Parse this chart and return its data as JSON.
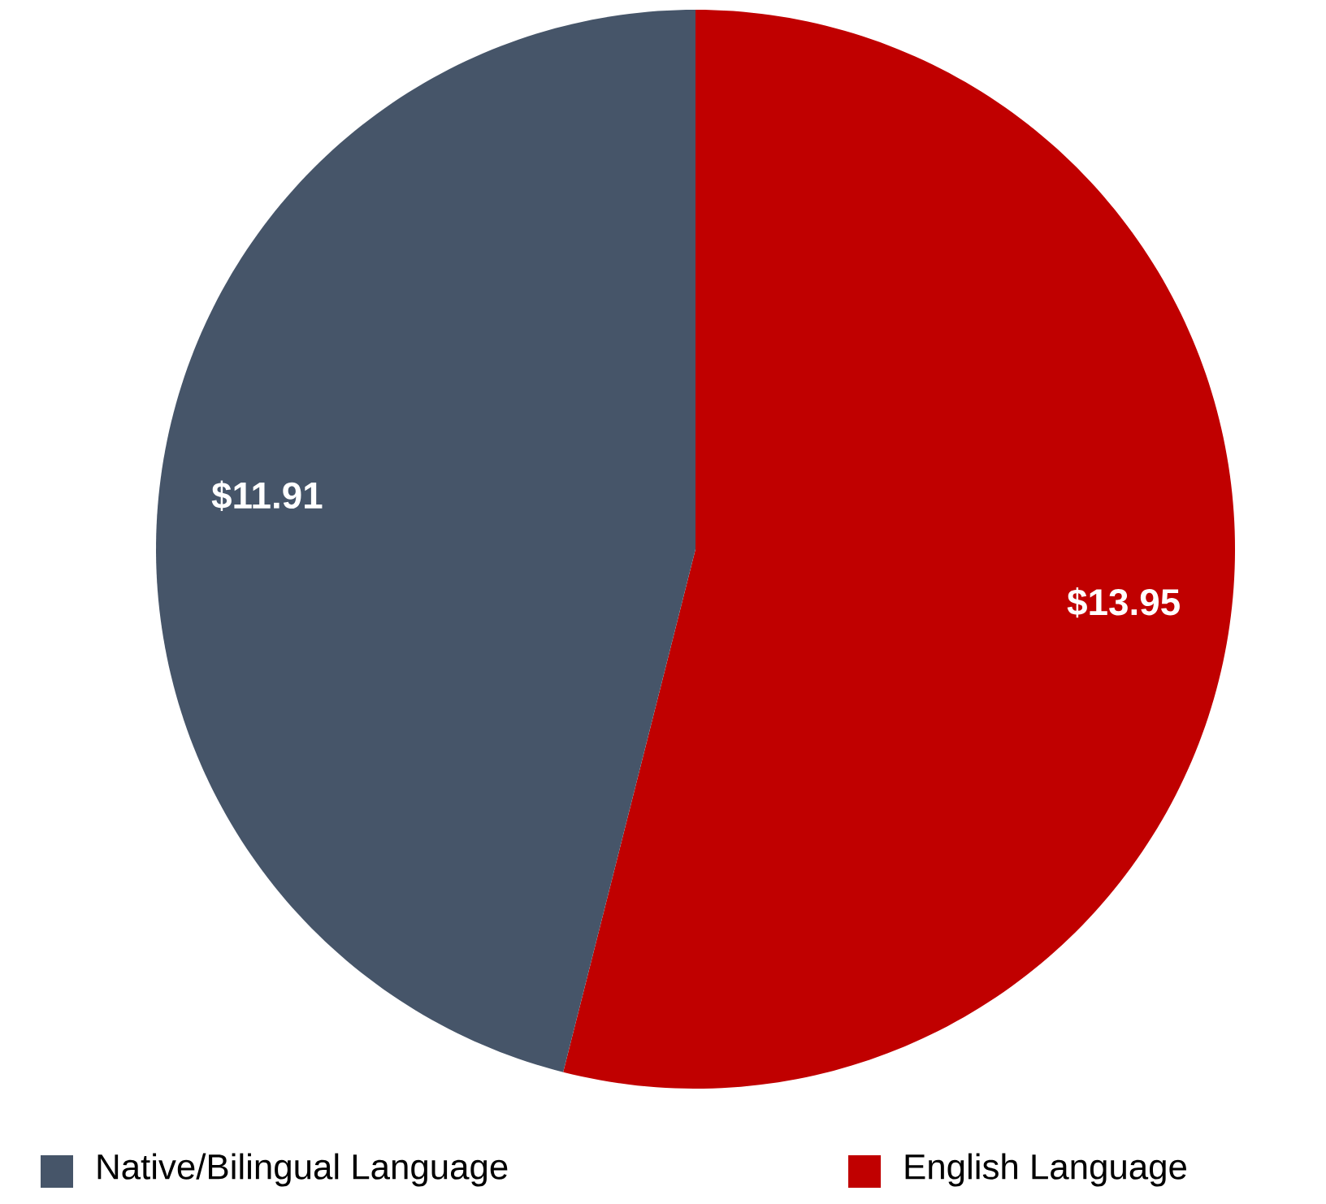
{
  "chart_data": {
    "type": "pie",
    "categories": [
      "Native/Bilingual Language",
      "English Language"
    ],
    "values": [
      11.91,
      13.95
    ],
    "colors": [
      "#465569",
      "#c00000"
    ],
    "value_labels": [
      "$11.91",
      "$13.95"
    ],
    "legend": "bottom"
  }
}
